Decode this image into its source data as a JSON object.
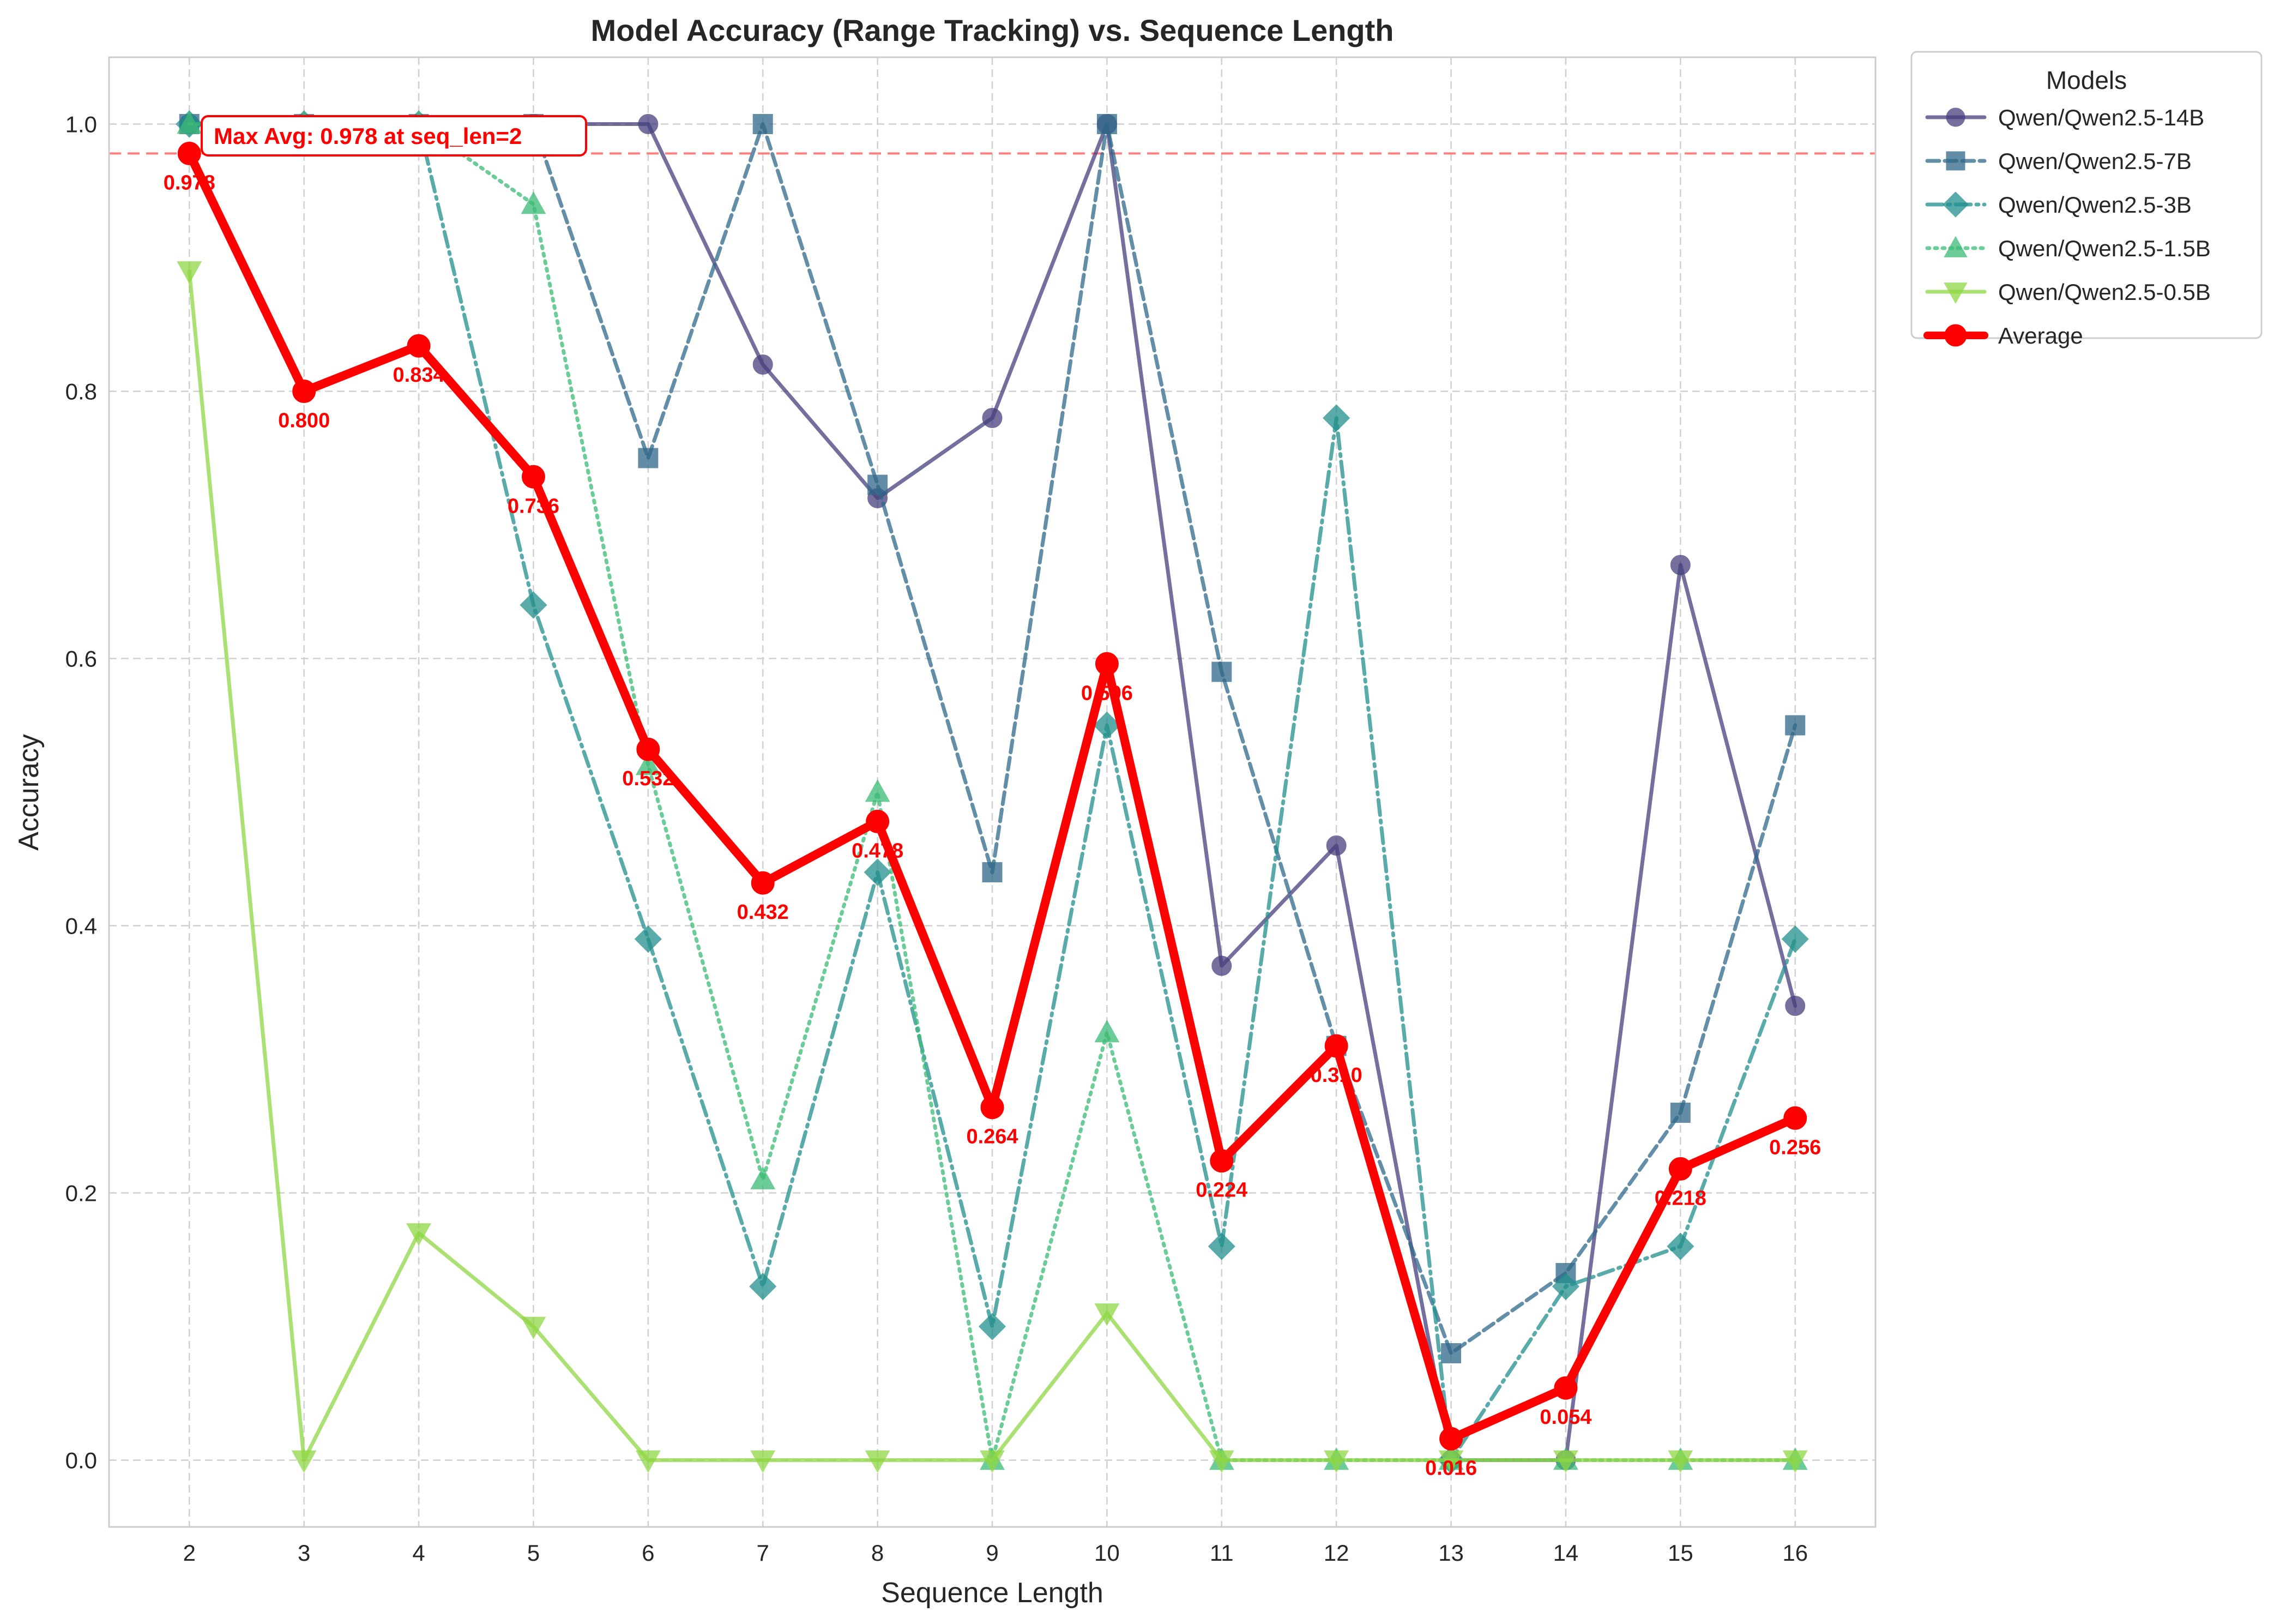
{
  "chart_data": {
    "type": "line",
    "title": "Model Accuracy (Range Tracking) vs. Sequence Length",
    "xlabel": "Sequence Length",
    "ylabel": "Accuracy",
    "x": [
      2,
      3,
      4,
      5,
      6,
      7,
      8,
      9,
      10,
      11,
      12,
      13,
      14,
      15,
      16
    ],
    "x_ticks": [
      "2",
      "3",
      "4",
      "5",
      "6",
      "7",
      "8",
      "9",
      "10",
      "11",
      "12",
      "13",
      "14",
      "15",
      "16"
    ],
    "xlim": [
      1.3,
      16.7
    ],
    "ylim": [
      -0.05,
      1.05
    ],
    "y_ticks": [
      "0.0",
      "0.2",
      "0.4",
      "0.6",
      "0.8",
      "1.0"
    ],
    "y_tick_values": [
      0.0,
      0.2,
      0.4,
      0.6,
      0.8,
      1.0
    ],
    "grid": true,
    "legend": {
      "title": "Models",
      "placement": "outside-top-right"
    },
    "series": [
      {
        "name": "Qwen/Qwen2.5-14B",
        "color": "#46407d",
        "dash": "solid",
        "marker": "circle",
        "values": [
          1.0,
          1.0,
          1.0,
          1.0,
          1.0,
          0.82,
          0.72,
          0.78,
          1.0,
          0.37,
          0.46,
          0.0,
          0.0,
          0.67,
          0.34
        ]
      },
      {
        "name": "Qwen/Qwen2.5-7B",
        "color": "#2f6889",
        "dash": "dashed",
        "marker": "square",
        "values": [
          1.0,
          1.0,
          1.0,
          1.0,
          0.75,
          1.0,
          0.73,
          0.44,
          1.0,
          0.59,
          0.31,
          0.08,
          0.14,
          0.26,
          0.55
        ]
      },
      {
        "name": "Qwen/Qwen2.5-3B",
        "color": "#218f8d",
        "dash": "dashdot",
        "marker": "diamond",
        "values": [
          1.0,
          1.0,
          1.0,
          0.64,
          0.39,
          0.13,
          0.44,
          0.1,
          0.55,
          0.16,
          0.78,
          0.0,
          0.13,
          0.16,
          0.39
        ]
      },
      {
        "name": "Qwen/Qwen2.5-1.5B",
        "color": "#3bbb75",
        "dash": "dotted",
        "marker": "triangle-up",
        "values": [
          1.0,
          1.0,
          1.0,
          0.94,
          0.52,
          0.21,
          0.5,
          0.0,
          0.32,
          0.0,
          0.0,
          0.0,
          0.0,
          0.0,
          0.0
        ]
      },
      {
        "name": "Qwen/Qwen2.5-0.5B",
        "color": "#8fd744",
        "dash": "solid",
        "marker": "triangle-down",
        "values": [
          0.89,
          0.0,
          0.17,
          0.1,
          0.0,
          0.0,
          0.0,
          0.0,
          0.11,
          0.0,
          0.0,
          0.0,
          0.0,
          0.0,
          0.0
        ]
      },
      {
        "name": "Average",
        "color": "#ff0000",
        "dash": "solid",
        "marker": "circle",
        "values": [
          0.978,
          0.8,
          0.834,
          0.736,
          0.532,
          0.432,
          0.478,
          0.264,
          0.596,
          0.224,
          0.31,
          0.016,
          0.054,
          0.218,
          0.256
        ]
      }
    ],
    "average_labels": [
      "0.978",
      "0.800",
      "0.834",
      "0.736",
      "0.532",
      "0.432",
      "0.478",
      "0.264",
      "0.596",
      "0.224",
      "0.310",
      "0.016",
      "0.054",
      "0.218",
      "0.256"
    ],
    "reference_line": {
      "y": 0.978,
      "color": "#ff7f7f",
      "style": "dashed"
    },
    "annotation": {
      "text": "Max Avg: 0.978 at seq_len=2",
      "color": "#ff0000",
      "x": 2,
      "y": 0.978
    }
  }
}
